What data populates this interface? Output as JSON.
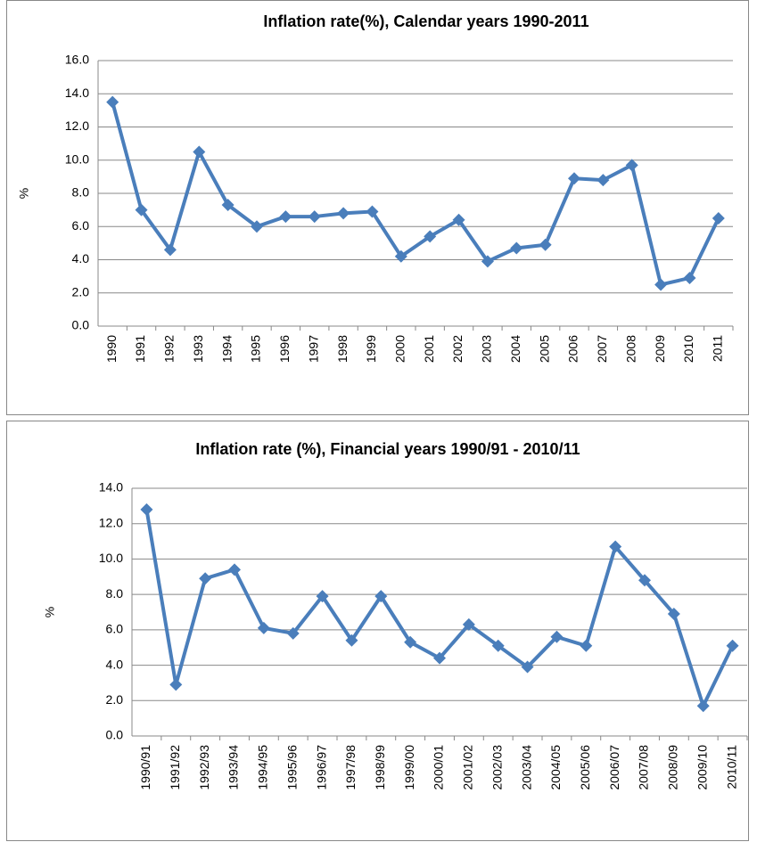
{
  "chart_data": [
    {
      "type": "line",
      "title": "Inflation rate(%), Calendar years 1990-2011",
      "ylabel": "%",
      "categories": [
        "1990",
        "1991",
        "1992",
        "1993",
        "1994",
        "1995",
        "1996",
        "1997",
        "1998",
        "1999",
        "2000",
        "2001",
        "2002",
        "2003",
        "2004",
        "2005",
        "2006",
        "2007",
        "2008",
        "2009",
        "2010",
        "2011"
      ],
      "values": [
        13.5,
        7.0,
        4.6,
        10.5,
        7.3,
        6.0,
        6.6,
        6.6,
        6.8,
        6.9,
        4.2,
        5.4,
        6.4,
        3.9,
        4.7,
        4.9,
        8.9,
        8.8,
        9.7,
        2.5,
        2.9,
        6.5
      ],
      "color": "#4a7ebb",
      "ylim": [
        0,
        16
      ],
      "yticks": [
        {
          "value": 0,
          "label": "0.0"
        },
        {
          "value": 2,
          "label": "2.0"
        },
        {
          "value": 4,
          "label": "4.0"
        },
        {
          "value": 6,
          "label": "6.0"
        },
        {
          "value": 8,
          "label": "8.0"
        },
        {
          "value": 10,
          "label": "10.0"
        },
        {
          "value": 12,
          "label": "12.0"
        },
        {
          "value": 14,
          "label": "14.0"
        },
        {
          "value": 16,
          "label": "16.0"
        }
      ],
      "grid": true
    },
    {
      "type": "line",
      "title": "Inflation rate (%), Financial years 1990/91 - 2010/11",
      "ylabel": "%",
      "categories": [
        "1990/91",
        "1991/92",
        "1992/93",
        "1993/94",
        "1994/95",
        "1995/96",
        "1996/97",
        "1997/98",
        "1998/99",
        "1999/00",
        "2000/01",
        "2001/02",
        "2002/03",
        "2003/04",
        "2004/05",
        "2005/06",
        "2006/07",
        "2007/08",
        "2008/09",
        "2009/10",
        "2010/11"
      ],
      "values": [
        12.8,
        2.9,
        8.9,
        9.4,
        6.1,
        5.8,
        7.9,
        5.4,
        7.9,
        5.3,
        4.4,
        6.3,
        5.1,
        3.9,
        5.6,
        5.1,
        10.7,
        8.8,
        6.9,
        1.7,
        5.1
      ],
      "color": "#4a7ebb",
      "ylim": [
        0,
        14
      ],
      "yticks": [
        {
          "value": 0,
          "label": "0.0"
        },
        {
          "value": 2,
          "label": "2.0"
        },
        {
          "value": 4,
          "label": "4.0"
        },
        {
          "value": 6,
          "label": "6.0"
        },
        {
          "value": 8,
          "label": "8.0"
        },
        {
          "value": 10,
          "label": "10.0"
        },
        {
          "value": 12,
          "label": "12.0"
        },
        {
          "value": 14,
          "label": "14.0"
        }
      ],
      "grid": true
    }
  ]
}
